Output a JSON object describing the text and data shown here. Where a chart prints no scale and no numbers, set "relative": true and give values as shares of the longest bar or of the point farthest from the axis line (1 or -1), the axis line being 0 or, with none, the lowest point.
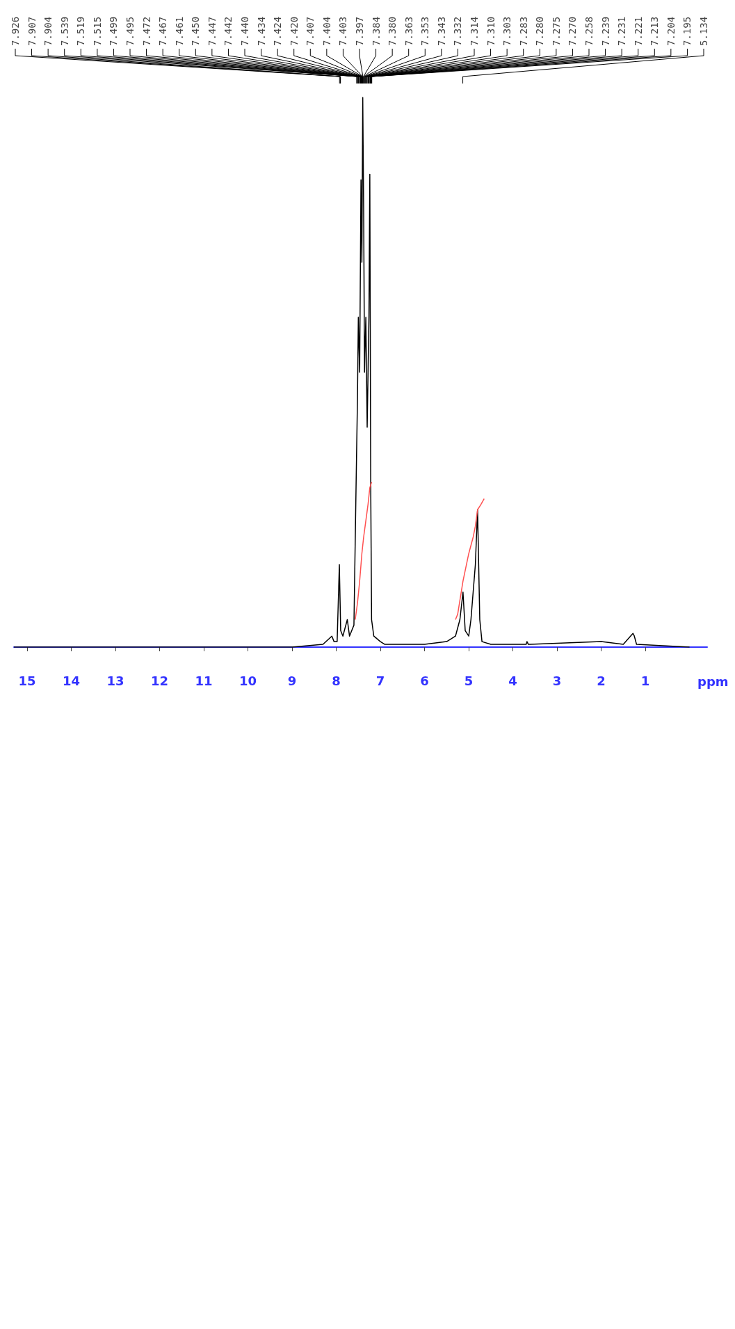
{
  "chart_data": {
    "type": "line",
    "relative": true,
    "xlabel": "ppm",
    "xlim": [
      15.3,
      -0.4
    ],
    "xticks": [
      15,
      14,
      13,
      12,
      11,
      10,
      9,
      8,
      7,
      6,
      5,
      4,
      3,
      2,
      1
    ],
    "marker": "none",
    "grid": false,
    "series": [
      {
        "color": "#000000",
        "x": [
          15.3,
          9,
          8.3,
          8.1,
          8.05,
          7.98,
          7.93,
          7.9,
          7.85,
          7.75,
          7.7,
          7.6,
          7.55,
          7.52,
          7.5,
          7.47,
          7.44,
          7.42,
          7.4,
          7.38,
          7.36,
          7.33,
          7.3,
          7.28,
          7.26,
          7.24,
          7.22,
          7.2,
          7.15,
          7,
          6.9,
          6,
          5.5,
          5.3,
          5.2,
          5.13,
          5.08,
          5,
          4.95,
          4.85,
          4.8,
          4.75,
          4.7,
          4.5,
          3.7,
          3.68,
          3.65,
          2,
          1.5,
          1.28,
          1.25,
          1.2,
          0
        ],
        "values": [
          0,
          0,
          0.005,
          0.02,
          0.01,
          0.01,
          0.15,
          0.03,
          0.02,
          0.05,
          0.02,
          0.04,
          0.3,
          0.45,
          0.6,
          0.5,
          0.85,
          0.7,
          1,
          0.8,
          0.5,
          0.6,
          0.4,
          0.5,
          0.6,
          0.86,
          0.3,
          0.05,
          0.02,
          0.01,
          0.005,
          0.005,
          0.01,
          0.02,
          0.05,
          0.1,
          0.03,
          0.02,
          0.05,
          0.15,
          0.25,
          0.05,
          0.01,
          0.005,
          0.005,
          0.01,
          0.005,
          0.01,
          0.005,
          0.025,
          0.02,
          0.005,
          0
        ]
      },
      {
        "color": "#ff5050",
        "x": [
          7.57,
          7.52,
          7.47,
          7.42,
          7.38,
          7.33,
          7.28,
          7.24,
          7.2
        ],
        "values": [
          0.05,
          0.08,
          0.12,
          0.17,
          0.2,
          0.23,
          0.26,
          0.29,
          0.3
        ]
      },
      {
        "color": "#ff5050",
        "x": [
          5.3,
          5.25,
          5.13,
          5.0,
          4.9,
          4.85,
          4.8,
          4.72,
          4.65
        ],
        "values": [
          0.05,
          0.06,
          0.12,
          0.17,
          0.2,
          0.22,
          0.25,
          0.26,
          0.27
        ]
      }
    ],
    "annotations": [
      {
        "text": "7.926",
        "x": 7.926
      },
      {
        "text": "7.907",
        "x": 7.907
      },
      {
        "text": "7.904",
        "x": 7.904
      },
      {
        "text": "7.539",
        "x": 7.539
      },
      {
        "text": "7.519",
        "x": 7.519
      },
      {
        "text": "7.515",
        "x": 7.515
      },
      {
        "text": "7.499",
        "x": 7.499
      },
      {
        "text": "7.495",
        "x": 7.495
      },
      {
        "text": "7.472",
        "x": 7.472
      },
      {
        "text": "7.467",
        "x": 7.467
      },
      {
        "text": "7.461",
        "x": 7.461
      },
      {
        "text": "7.450",
        "x": 7.45
      },
      {
        "text": "7.447",
        "x": 7.447
      },
      {
        "text": "7.442",
        "x": 7.442
      },
      {
        "text": "7.440",
        "x": 7.44
      },
      {
        "text": "7.434",
        "x": 7.434
      },
      {
        "text": "7.424",
        "x": 7.424
      },
      {
        "text": "7.420",
        "x": 7.42
      },
      {
        "text": "7.407",
        "x": 7.407
      },
      {
        "text": "7.404",
        "x": 7.404
      },
      {
        "text": "7.403",
        "x": 7.403
      },
      {
        "text": "7.397",
        "x": 7.397
      },
      {
        "text": "7.384",
        "x": 7.384
      },
      {
        "text": "7.380",
        "x": 7.38
      },
      {
        "text": "7.363",
        "x": 7.363
      },
      {
        "text": "7.353",
        "x": 7.353
      },
      {
        "text": "7.343",
        "x": 7.343
      },
      {
        "text": "7.332",
        "x": 7.332
      },
      {
        "text": "7.314",
        "x": 7.314
      },
      {
        "text": "7.310",
        "x": 7.31
      },
      {
        "text": "7.303",
        "x": 7.303
      },
      {
        "text": "7.283",
        "x": 7.283
      },
      {
        "text": "7.280",
        "x": 7.28
      },
      {
        "text": "7.275",
        "x": 7.275
      },
      {
        "text": "7.270",
        "x": 7.27
      },
      {
        "text": "7.258",
        "x": 7.258
      },
      {
        "text": "7.239",
        "x": 7.239
      },
      {
        "text": "7.231",
        "x": 7.231
      },
      {
        "text": "7.221",
        "x": 7.221
      },
      {
        "text": "7.213",
        "x": 7.213
      },
      {
        "text": "7.204",
        "x": 7.204
      },
      {
        "text": "7.195",
        "x": 7.195
      },
      {
        "text": "5.134",
        "x": 5.134
      }
    ]
  }
}
